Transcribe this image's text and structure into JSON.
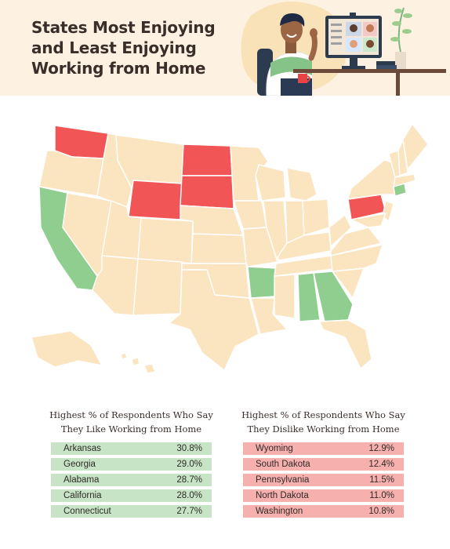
{
  "title": {
    "line1": "States Most Enjoying",
    "line2": "and Least Enjoying",
    "line3": "Working from Home"
  },
  "colors": {
    "header_bg": "#fdf2e2",
    "state_default": "#fbe5c0",
    "state_like": "#8fce8f",
    "state_dislike": "#f25555",
    "row_like": "#c7e4c6",
    "row_dislike": "#f6b1ae"
  },
  "like_table": {
    "heading_line1": "Highest % of Respondents Who Say",
    "heading_line2": "They Like Working from Home",
    "rows": [
      {
        "state": "Arkansas",
        "value": "30.8%"
      },
      {
        "state": "Georgia",
        "value": "29.0%"
      },
      {
        "state": "Alabama",
        "value": "28.7%"
      },
      {
        "state": "California",
        "value": "28.0%"
      },
      {
        "state": "Connecticut",
        "value": "27.7%"
      }
    ]
  },
  "dislike_table": {
    "heading_line1": "Highest % of Respondents Who Say",
    "heading_line2": "They Dislike Working from Home",
    "rows": [
      {
        "state": "Wyoming",
        "value": "12.9%"
      },
      {
        "state": "South Dakota",
        "value": "12.4%"
      },
      {
        "state": "Pennsylvania",
        "value": "11.5%"
      },
      {
        "state": "North Dakota",
        "value": "11.0%"
      },
      {
        "state": "Washington",
        "value": "10.8%"
      }
    ]
  },
  "map_states": {
    "like": [
      "Arkansas",
      "Georgia",
      "Alabama",
      "California",
      "Connecticut"
    ],
    "dislike": [
      "Wyoming",
      "South Dakota",
      "Pennsylvania",
      "North Dakota",
      "Washington"
    ]
  },
  "illustration_icons": [
    "person-waving-icon",
    "laptop-video-call-icon",
    "coffee-mug-icon",
    "plant-icon",
    "desk-icon"
  ]
}
